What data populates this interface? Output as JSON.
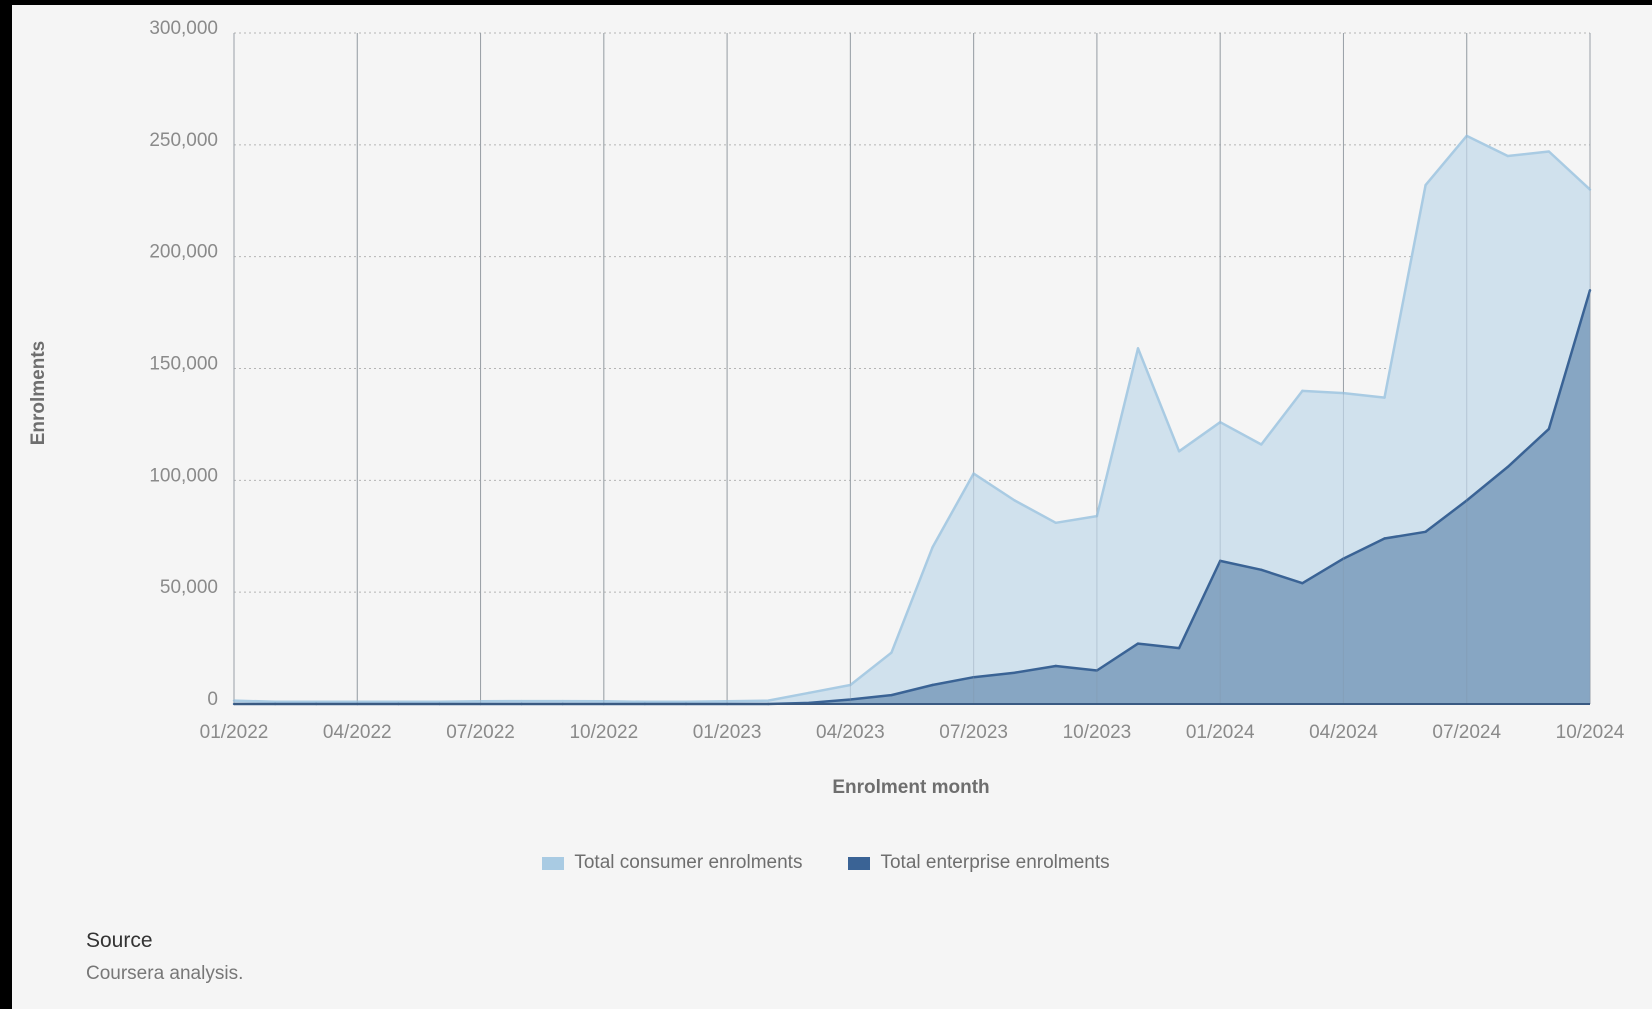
{
  "chart_data": {
    "type": "area",
    "xlabel": "Enrolment month",
    "ylabel": "Enrolments",
    "ylim": [
      0,
      300000
    ],
    "yticks": [
      0,
      50000,
      100000,
      150000,
      200000,
      250000,
      300000
    ],
    "ytick_labels": [
      "0",
      "50,000",
      "100,000",
      "150,000",
      "200,000",
      "250,000",
      "300,000"
    ],
    "x": [
      "01/2022",
      "02/2022",
      "03/2022",
      "04/2022",
      "05/2022",
      "06/2022",
      "07/2022",
      "08/2022",
      "09/2022",
      "10/2022",
      "11/2022",
      "12/2022",
      "01/2023",
      "02/2023",
      "03/2023",
      "04/2023",
      "05/2023",
      "06/2023",
      "07/2023",
      "08/2023",
      "09/2023",
      "10/2023",
      "11/2023",
      "12/2023",
      "01/2024",
      "02/2024",
      "03/2024",
      "04/2024",
      "05/2024",
      "06/2024",
      "07/2024",
      "08/2024",
      "09/2024",
      "10/2024"
    ],
    "xtick_labels": [
      "01/2022",
      "04/2022",
      "07/2022",
      "10/2022",
      "01/2023",
      "04/2023",
      "07/2023",
      "10/2023",
      "01/2024",
      "04/2024",
      "07/2024",
      "10/2024"
    ],
    "grid": {
      "horizontal": "dotted",
      "vertical": "solid"
    },
    "legend_position": "bottom",
    "series": [
      {
        "name": "Total consumer enrolments",
        "color": "#a9cbe3",
        "fill": "#d0e1ed",
        "values": [
          1500,
          1000,
          1000,
          1000,
          1000,
          1000,
          1200,
          1300,
          1300,
          1200,
          1000,
          1000,
          1200,
          1500,
          5000,
          8500,
          23000,
          70000,
          103000,
          91000,
          81000,
          84000,
          159000,
          113000,
          126000,
          116000,
          140000,
          139000,
          137000,
          232000,
          254000,
          245000,
          247000,
          230000
        ]
      },
      {
        "name": "Total enterprise enrolments",
        "color": "#3a6395",
        "fill": "#81a1bf",
        "values": [
          0,
          0,
          0,
          0,
          0,
          0,
          0,
          0,
          0,
          0,
          0,
          0,
          0,
          0,
          500,
          2000,
          4000,
          8500,
          12000,
          14000,
          17000,
          15000,
          27000,
          25000,
          64000,
          60000,
          54000,
          65000,
          74000,
          77000,
          91000,
          106000,
          123000,
          185000
        ]
      }
    ]
  },
  "legend": {
    "consumer_label": "Total consumer enrolments",
    "enterprise_label": "Total enterprise enrolments"
  },
  "source": {
    "title": "Source",
    "text": "Coursera analysis."
  }
}
